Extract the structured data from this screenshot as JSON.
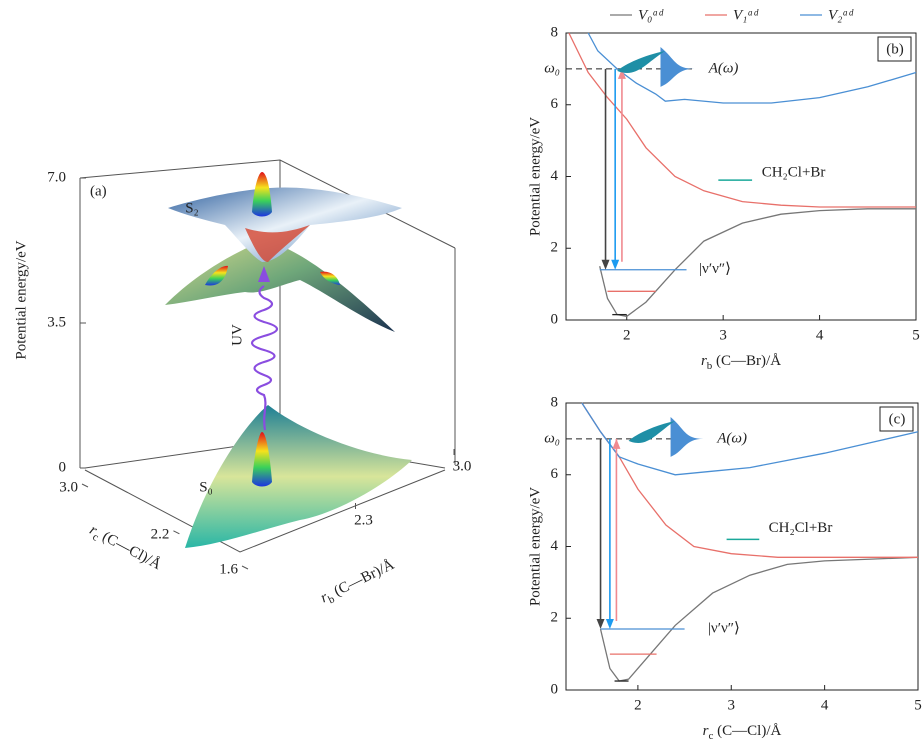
{
  "chart_data": [
    {
      "type": "surface3d",
      "panel_label": "(a)",
      "zlabel": "Potential energy/eV",
      "xlabel": [
        "r",
        "c",
        " (C—Cl)/Å"
      ],
      "ylabel": [
        "r",
        "b",
        " (C—Br)/Å"
      ],
      "zlim": [
        0,
        7
      ],
      "zticks": [
        0,
        3.5,
        {
          "value": 7,
          "label": "7.0"
        }
      ],
      "xlim": [
        3,
        1.6
      ],
      "xticks": [
        {
          "value": 3,
          "label": "3.0"
        },
        2.2,
        1.6
      ],
      "ylim": [
        1.6,
        3
      ],
      "yticks": [
        2.3,
        {
          "value": 3,
          "label": "3.0"
        }
      ],
      "annotations": [
        "S₂",
        "S₀",
        "UV"
      ]
    },
    {
      "type": "line",
      "panel_label": "(b)",
      "xlabel": [
        "r",
        "b",
        " (C—Br)/Å"
      ],
      "ylabel": "Potential energy/eV",
      "xlim": [
        1.37,
        5
      ],
      "xticks": [
        2,
        3,
        4,
        5
      ],
      "ylim": [
        0,
        8
      ],
      "yticks": [
        0,
        2,
        4,
        6,
        8
      ],
      "marker_line": {
        "label": "ω₀",
        "value": 7,
        "color": "#e8706a"
      },
      "annotations": [
        "A(ω)",
        "CH₂Cl+Br",
        "|ν′ν″⟩"
      ],
      "series": [
        {
          "name": "V₀ᵃᵈ",
          "color": "#777777",
          "x": [
            1.72,
            1.8,
            1.9,
            2.0,
            2.2,
            2.5,
            2.8,
            3.2,
            3.6,
            4,
            4.5,
            5
          ],
          "values": [
            1.5,
            0.6,
            0.15,
            0.1,
            0.5,
            1.4,
            2.2,
            2.7,
            2.95,
            3.05,
            3.1,
            3.1
          ]
        },
        {
          "name": "V₁ᵃᵈ",
          "color": "#e8706a",
          "x": [
            1.4,
            1.6,
            1.8,
            2.0,
            2.2,
            2.5,
            2.8,
            3.2,
            3.6,
            4,
            5
          ],
          "values": [
            8,
            6.9,
            6.2,
            5.6,
            4.8,
            4.0,
            3.6,
            3.3,
            3.2,
            3.15,
            3.15
          ]
        },
        {
          "name": "V₂ᵃᵈ",
          "color": "#4a8fd4",
          "x": [
            1.6,
            1.7,
            1.9,
            2.1,
            2.3,
            2.4,
            2.6,
            3,
            3.5,
            4,
            4.5,
            5
          ],
          "values": [
            8,
            7.5,
            7.0,
            6.6,
            6.3,
            6.1,
            6.15,
            6.05,
            6.05,
            6.2,
            6.5,
            6.9
          ]
        }
      ]
    },
    {
      "type": "line",
      "panel_label": "(c)",
      "xlabel": [
        "r",
        "c",
        " (C—Cl)/Å"
      ],
      "ylabel": "Potential energy/eV",
      "xlim": [
        1.23,
        5
      ],
      "xticks": [
        2,
        3,
        4,
        5
      ],
      "ylim": [
        0,
        8
      ],
      "yticks": [
        0,
        2,
        4,
        6,
        8
      ],
      "marker_line": {
        "label": "ω₀",
        "value": 7,
        "color": "#e8706a"
      },
      "annotations": [
        "A(ω)",
        "CH₂Cl+Br",
        "|ν′ν″⟩"
      ],
      "series": [
        {
          "color": "#777777",
          "x": [
            1.6,
            1.7,
            1.8,
            1.9,
            2.1,
            2.4,
            2.8,
            3.2,
            3.6,
            4,
            4.5,
            5
          ],
          "values": [
            1.7,
            0.6,
            0.25,
            0.3,
            0.9,
            1.8,
            2.7,
            3.2,
            3.5,
            3.6,
            3.65,
            3.7
          ]
        },
        {
          "color": "#e8706a",
          "x": [
            1.4,
            1.6,
            1.8,
            2.0,
            2.3,
            2.6,
            3,
            3.5,
            4,
            5
          ],
          "values": [
            8,
            7.2,
            6.5,
            5.6,
            4.6,
            4.0,
            3.8,
            3.7,
            3.7,
            3.7
          ]
        },
        {
          "color": "#4a8fd4",
          "x": [
            1.4,
            1.5,
            1.6,
            1.8,
            2.0,
            2.4,
            2.8,
            3.2,
            3.6,
            4,
            4.5,
            5
          ],
          "values": [
            8,
            7.6,
            7.2,
            6.5,
            6.3,
            6.0,
            6.1,
            6.2,
            6.4,
            6.6,
            6.9,
            7.2
          ]
        }
      ]
    }
  ]
}
